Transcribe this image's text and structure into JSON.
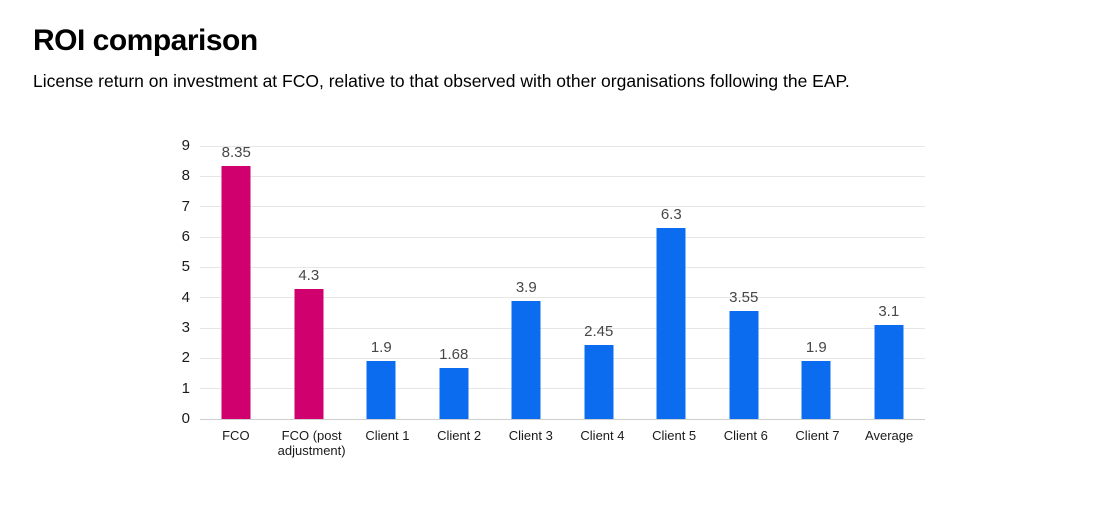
{
  "header": {
    "title": "ROI comparison",
    "subtitle": "License return on investment at FCO, relative to that observed with other organisations following the EAP."
  },
  "chart_data": {
    "type": "bar",
    "title": "ROI comparison",
    "subtitle": "License return on investment at FCO, relative to that observed with other organisations following the EAP.",
    "categories": [
      "FCO",
      "FCO (post adjustment)",
      "Client 1",
      "Client 2",
      "Client 3",
      "Client 4",
      "Client 5",
      "Client 6",
      "Client 7",
      "Average"
    ],
    "values": [
      8.35,
      4.3,
      1.9,
      1.68,
      3.9,
      2.45,
      6.3,
      3.55,
      1.9,
      3.1
    ],
    "data_labels": [
      "8.35",
      "4.3",
      "1.9",
      "1.68",
      "3.9",
      "2.45",
      "6.3",
      "3.55",
      "1.9",
      "3.1"
    ],
    "bar_colors": [
      "#d0006f",
      "#d0006f",
      "#0b6cf0",
      "#0b6cf0",
      "#0b6cf0",
      "#0b6cf0",
      "#0b6cf0",
      "#0b6cf0",
      "#0b6cf0",
      "#0b6cf0"
    ],
    "xlabel": "",
    "ylabel": "",
    "ylim": [
      0,
      9
    ],
    "yticks": [
      0,
      1,
      2,
      3,
      4,
      5,
      6,
      7,
      8,
      9
    ],
    "grid": true,
    "legend_position": "none",
    "colors": {
      "fco_accent": "#d0006f",
      "client_blue": "#0b6cf0",
      "gridline": "#e6e6e6",
      "axis_line": "#cfcfcf",
      "data_label": "#474747",
      "tick_label": "#1a1a1a",
      "background": "#ffffff"
    }
  }
}
